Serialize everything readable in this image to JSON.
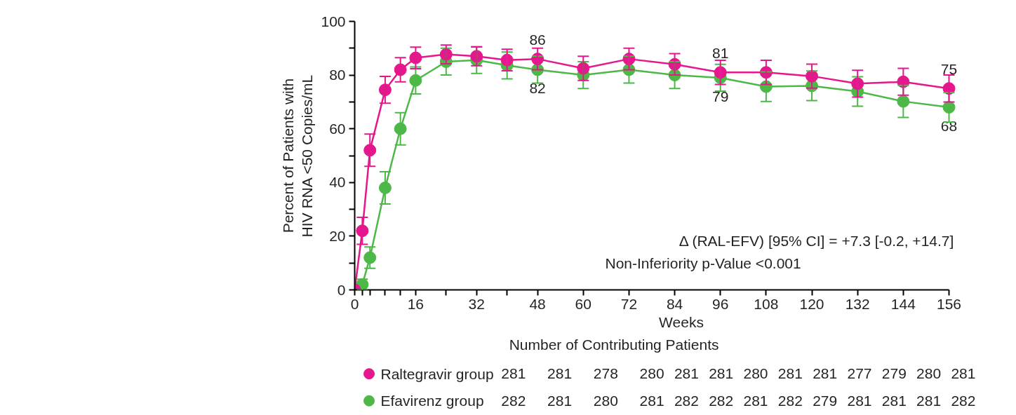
{
  "chart_data": {
    "type": "line",
    "xlabel": "Weeks",
    "ylabel": "Percent of Patients with\nHIV RNA <50 Copies/mL",
    "x": [
      0,
      2,
      4,
      8,
      12,
      16,
      24,
      32,
      40,
      48,
      60,
      72,
      84,
      96,
      108,
      120,
      132,
      144,
      156
    ],
    "series": [
      {
        "name": "Raltegravir group",
        "color": "#e5178c",
        "values": [
          0,
          22,
          52,
          74.5,
          82,
          86.4,
          87.7,
          87,
          85.6,
          86,
          82.5,
          86,
          84,
          81,
          81,
          79.6,
          76.8,
          77.5,
          75
        ],
        "errors": [
          null,
          5,
          6,
          5,
          4.5,
          4,
          3.5,
          3.5,
          4,
          4,
          4.5,
          4,
          4,
          4.5,
          4.5,
          4.5,
          5,
          5,
          5
        ],
        "value_labels": [
          null,
          null,
          null,
          null,
          null,
          null,
          null,
          null,
          null,
          "86",
          null,
          null,
          null,
          "81",
          null,
          null,
          null,
          null,
          "75"
        ]
      },
      {
        "name": "Efavirenz group",
        "color": "#4db848",
        "values": [
          0,
          2,
          12,
          38,
          60,
          78,
          85,
          85.6,
          83.6,
          82,
          80,
          82,
          80,
          79,
          75.7,
          76,
          73.9,
          70.2,
          68
        ],
        "errors": [
          null,
          2,
          4,
          6,
          6,
          5,
          5,
          5,
          5,
          5,
          5,
          5,
          5,
          5,
          5.5,
          5.5,
          5.5,
          6,
          5.5
        ],
        "value_labels": [
          null,
          null,
          null,
          null,
          null,
          null,
          null,
          null,
          null,
          "82",
          null,
          null,
          null,
          "79",
          null,
          null,
          null,
          null,
          "68"
        ]
      }
    ],
    "xlim": [
      0,
      156
    ],
    "xticks": [
      0,
      {
        "value": 2,
        "label": null
      },
      {
        "value": 4,
        "label": null
      },
      {
        "value": 8,
        "label": null
      },
      {
        "value": 12,
        "label": null
      },
      16,
      {
        "value": 24,
        "label": null
      },
      32,
      {
        "value": 40,
        "label": null
      },
      48,
      60,
      72,
      84,
      96,
      108,
      120,
      132,
      144,
      156
    ],
    "ylim": [
      0,
      100
    ],
    "yticks": [
      0,
      {
        "value": 10,
        "label": null
      },
      20,
      {
        "value": 30,
        "label": null
      },
      40,
      {
        "value": 50,
        "label": null
      },
      60,
      {
        "value": 70,
        "label": null
      },
      80,
      {
        "value": 90,
        "label": null
      },
      100
    ],
    "marker": "circle",
    "grid": false,
    "legend": "bottom",
    "annotations": [
      "Number of Contributing Patients",
      "281 281 278 280 281 281 280 281 281 277 279 280 281",
      "282 281 280 281 282 282 281 282 279 281 281 281 282",
      "Δ (RAL-EFV) [95% CI] = +7.3 [-0.2, +14.7]",
      "Non-Inferiority p-Value <0.001"
    ]
  }
}
